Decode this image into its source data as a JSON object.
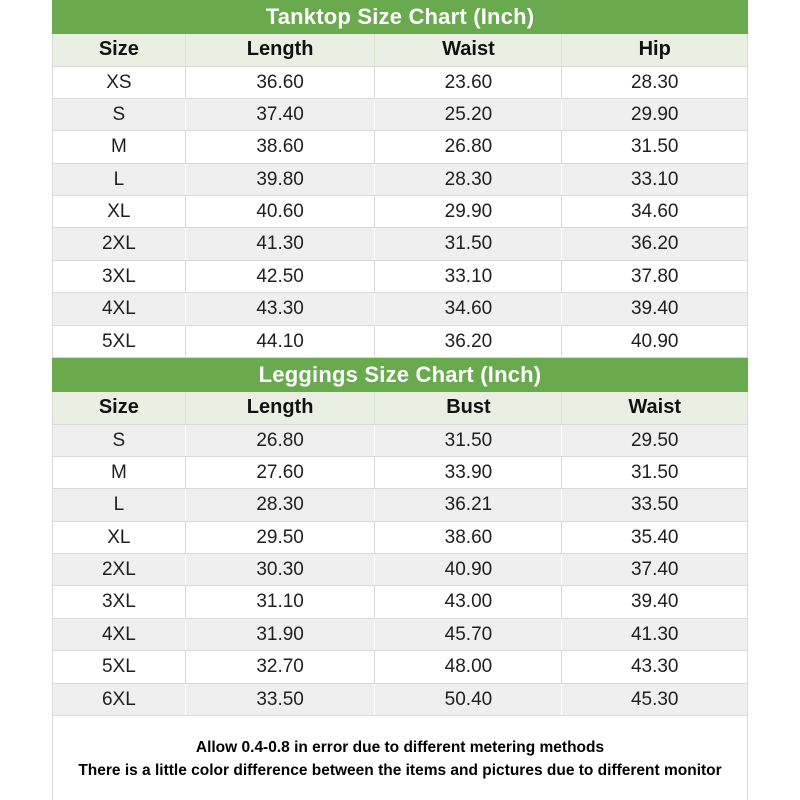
{
  "colors": {
    "title_bg": "#6aaa4e",
    "title_text": "#ffffff",
    "header_row_bg": "#e9f0e3",
    "row_bg": "#ffffff",
    "row_alt_bg": "#efefef",
    "border": "#d9d9d9",
    "text": "#1f1f1f"
  },
  "chart_data": [
    {
      "type": "table",
      "title": "Tanktop Size Chart (Inch)",
      "columns": [
        "Size",
        "Length",
        "Waist",
        "Hip"
      ],
      "first_row_shaded": false,
      "rows": [
        [
          "XS",
          "36.60",
          "23.60",
          "28.30"
        ],
        [
          "S",
          "37.40",
          "25.20",
          "29.90"
        ],
        [
          "M",
          "38.60",
          "26.80",
          "31.50"
        ],
        [
          "L",
          "39.80",
          "28.30",
          "33.10"
        ],
        [
          "XL",
          "40.60",
          "29.90",
          "34.60"
        ],
        [
          "2XL",
          "41.30",
          "31.50",
          "36.20"
        ],
        [
          "3XL",
          "42.50",
          "33.10",
          "37.80"
        ],
        [
          "4XL",
          "43.30",
          "34.60",
          "39.40"
        ],
        [
          "5XL",
          "44.10",
          "36.20",
          "40.90"
        ]
      ]
    },
    {
      "type": "table",
      "title": "Leggings Size Chart (Inch)",
      "columns": [
        "Size",
        "Length",
        "Bust",
        "Waist"
      ],
      "first_row_shaded": true,
      "rows": [
        [
          "S",
          "26.80",
          "31.50",
          "29.50"
        ],
        [
          "M",
          "27.60",
          "33.90",
          "31.50"
        ],
        [
          "L",
          "28.30",
          "36.21",
          "33.50"
        ],
        [
          "XL",
          "29.50",
          "38.60",
          "35.40"
        ],
        [
          "2XL",
          "30.30",
          "40.90",
          "37.40"
        ],
        [
          "3XL",
          "31.10",
          "43.00",
          "39.40"
        ],
        [
          "4XL",
          "31.90",
          "45.70",
          "41.30"
        ],
        [
          "5XL",
          "32.70",
          "48.00",
          "43.30"
        ],
        [
          "6XL",
          "33.50",
          "50.40",
          "45.30"
        ]
      ]
    }
  ],
  "footer": {
    "line1": "Allow 0.4-0.8 in error due to different metering methods",
    "line2": "There is a little color difference between the items and pictures due to different monitor"
  }
}
